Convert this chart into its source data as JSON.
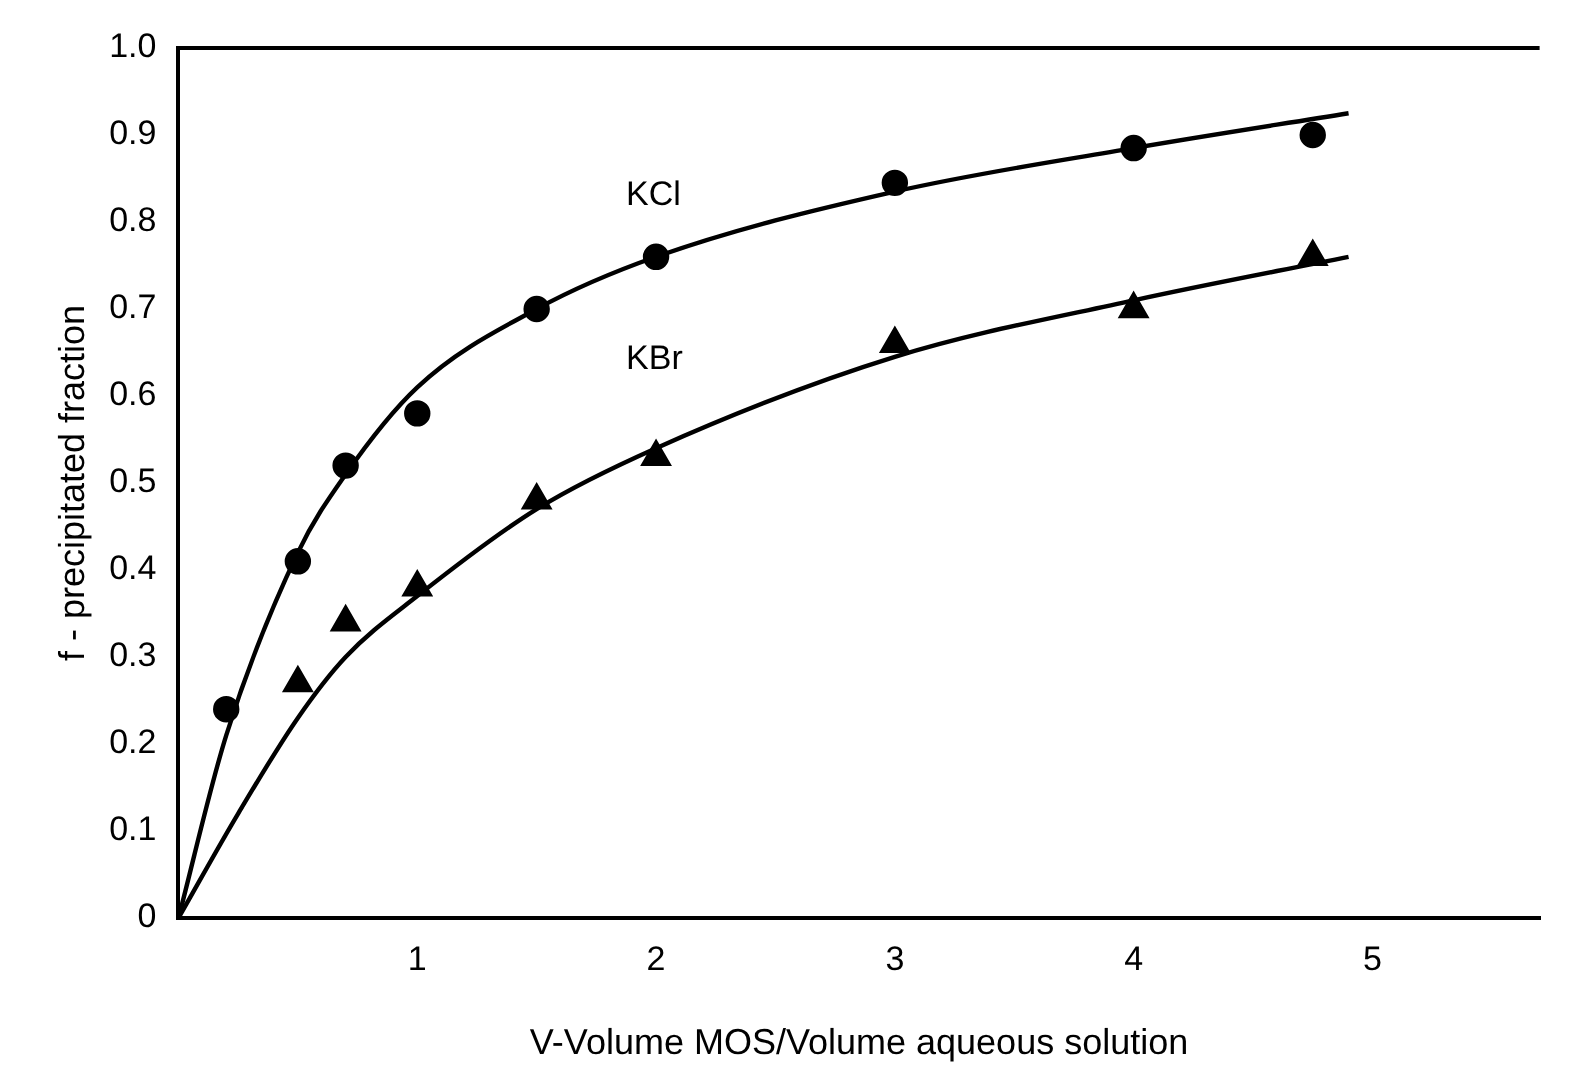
{
  "chart_data": {
    "type": "scatter",
    "xlabel": "V-Volume MOS/Volume aqueous solution",
    "ylabel": "f - precipitated fraction",
    "xlim": [
      0,
      5.7
    ],
    "xticks": [
      1,
      2,
      3,
      4,
      5
    ],
    "ylim": [
      0,
      1
    ],
    "yticks": [
      0,
      0.1,
      0.2,
      0.3,
      0.4,
      0.5,
      0.6,
      0.7,
      0.8,
      0.9,
      {
        "value": 1,
        "label": "1.0"
      }
    ],
    "grid": false,
    "legend": false,
    "series": [
      {
        "name": "KCl",
        "marker": "circle",
        "color": "#000000",
        "x": [
          0.2,
          0.5,
          0.7,
          1.0,
          1.5,
          2.0,
          3.0,
          4.0,
          4.75
        ],
        "values": [
          0.24,
          0.41,
          0.52,
          0.58,
          0.7,
          0.76,
          0.845,
          0.885,
          0.9
        ]
      },
      {
        "name": "KBr",
        "marker": "triangle",
        "color": "#000000",
        "x": [
          0.5,
          0.7,
          1.0,
          1.5,
          2.0,
          3.0,
          4.0,
          4.75
        ],
        "values": [
          0.27,
          0.34,
          0.38,
          0.48,
          0.53,
          0.66,
          0.7,
          0.76
        ]
      },
      {
        "type": "line",
        "marker": "none",
        "line_style": "solid",
        "color": "#000000",
        "x": [
          0,
          0.2,
          0.5,
          0.7,
          1.0,
          1.5,
          2.0,
          3.0,
          4.0,
          4.9
        ],
        "values": [
          0,
          0.21,
          0.42,
          0.51,
          0.61,
          0.7,
          0.76,
          0.835,
          0.885,
          0.925
        ]
      },
      {
        "type": "line",
        "marker": "none",
        "line_style": "solid",
        "color": "#000000",
        "x": [
          0,
          0.25,
          0.5,
          0.7,
          1.0,
          1.5,
          2.0,
          3.0,
          4.0,
          4.9
        ],
        "values": [
          0,
          0.12,
          0.23,
          0.3,
          0.37,
          0.47,
          0.54,
          0.645,
          0.71,
          0.76
        ]
      }
    ]
  }
}
